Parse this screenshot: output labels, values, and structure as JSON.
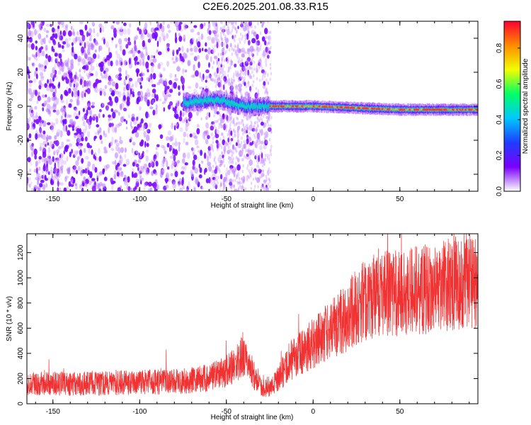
{
  "title": "C2E6.2025.201.08.33.R15",
  "chart_data": [
    {
      "type": "heatmap",
      "xlabel": "Height of straight line (km)",
      "ylabel": "Frequency (Hz)",
      "xlim": [
        -165,
        95
      ],
      "ylim": [
        -50,
        50
      ],
      "xticks": [
        "-150",
        "-100",
        "-50",
        "0",
        "50"
      ],
      "xtick_values": [
        -150,
        -100,
        -50,
        0,
        50
      ],
      "yticks": [
        "-40",
        "-20",
        "0",
        "20",
        "40"
      ],
      "ytick_values": [
        -40,
        -20,
        0,
        20,
        40
      ],
      "colorbar": {
        "label": "Normalized spectral amplitude",
        "range": [
          0,
          0.95
        ],
        "ticks": [
          "0.0",
          "0.2",
          "0.4",
          "0.6",
          "0.8"
        ],
        "tick_values": [
          0.0,
          0.2,
          0.4,
          0.6,
          0.8
        ],
        "colormap": [
          "#ffffff",
          "#7a00ff",
          "#1f3cff",
          "#00c8ff",
          "#00ff66",
          "#f0ff00",
          "#ff8c00",
          "#ff0030"
        ]
      },
      "description_regions": {
        "noise_band_x": [
          -165,
          -25
        ],
        "signal_band_x": [
          -75,
          95
        ],
        "signal_center_freq": [
          [
            -75,
            2
          ],
          [
            -55,
            4
          ],
          [
            -40,
            0
          ],
          [
            -25,
            0
          ],
          [
            0,
            0
          ],
          [
            50,
            -2
          ],
          [
            95,
            -2
          ]
        ]
      }
    },
    {
      "type": "line",
      "xlabel": "Height of straight line (km)",
      "ylabel": "SNR (10 * v/v)",
      "xlim": [
        -165,
        95
      ],
      "ylim": [
        0,
        1350
      ],
      "xticks": [
        "-150",
        "-100",
        "-50",
        "0",
        "50"
      ],
      "xtick_values": [
        -150,
        -100,
        -50,
        0,
        50
      ],
      "yticks": [
        "0",
        "200",
        "400",
        "600",
        "800",
        "1000",
        "1200"
      ],
      "ytick_values": [
        0,
        200,
        400,
        600,
        800,
        1000,
        1200
      ],
      "series": [
        {
          "color": "#f03232",
          "x": [
            -165,
            -150,
            -125,
            -100,
            -75,
            -62,
            -55,
            -50,
            -45,
            -40,
            -35,
            -30,
            -25,
            -20,
            -15,
            -10,
            -5,
            0,
            10,
            20,
            30,
            40,
            50,
            60,
            70,
            80,
            90,
            95
          ],
          "values": [
            160,
            160,
            160,
            170,
            180,
            200,
            230,
            260,
            300,
            400,
            250,
            150,
            130,
            190,
            320,
            380,
            420,
            480,
            580,
            700,
            820,
            880,
            880,
            900,
            920,
            950,
            980,
            960
          ]
        }
      ]
    }
  ]
}
